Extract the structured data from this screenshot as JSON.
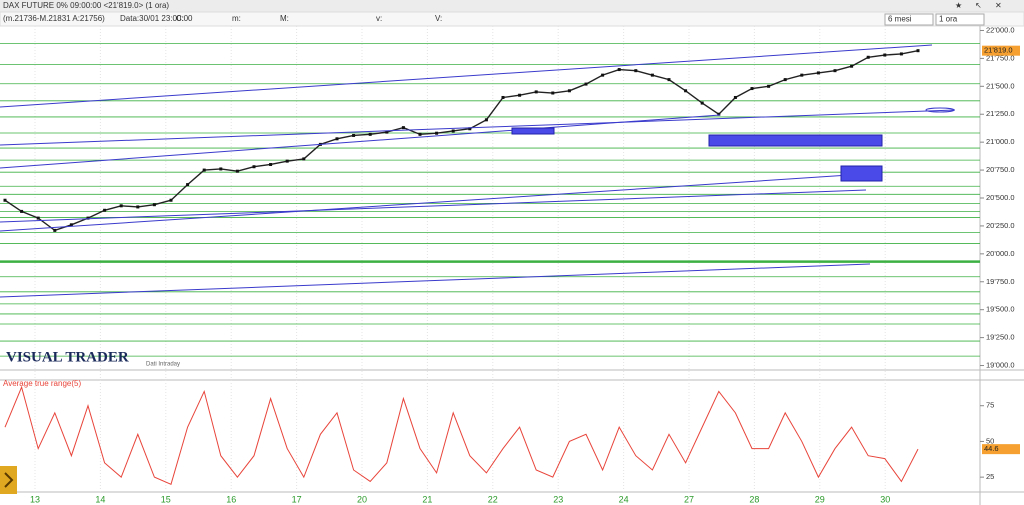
{
  "toolbar": {
    "title": "DAX FUTURE 0% 09:00:00  <21'819.0>  (1 ora)",
    "info": "(m.21736-M.21831 A:21756)",
    "date": "Data:30/01 23:00:00",
    "fields": [
      "C:",
      "m:",
      "M:",
      "v:",
      "V:"
    ],
    "period": "6 mesi",
    "interval": "1 ora"
  },
  "logo": "VISUAL TRADER",
  "logo_sub": "Dati Intraday",
  "chart_data": [
    {
      "type": "line",
      "color": "#222222",
      "day_labels": [
        "13",
        "14",
        "15",
        "16",
        "17",
        "20",
        "21",
        "22",
        "23",
        "24",
        "27",
        "28",
        "29",
        "30"
      ],
      "values": [
        20480,
        20380,
        20320,
        20210,
        20260,
        20320,
        20390,
        20430,
        20420,
        20440,
        20480,
        20620,
        20750,
        20760,
        20740,
        20780,
        20800,
        20830,
        20850,
        20980,
        21030,
        21060,
        21070,
        21090,
        21130,
        21070,
        21080,
        21100,
        21120,
        21200,
        21400,
        21420,
        21450,
        21440,
        21460,
        21520,
        21600,
        21650,
        21640,
        21600,
        21560,
        21460,
        21350,
        21250,
        21400,
        21480,
        21500,
        21560,
        21600,
        21620,
        21640,
        21680,
        21760,
        21780,
        21790,
        21819
      ],
      "last_label": "21'819.0",
      "ylim": [
        18960,
        22040
      ],
      "yticks": [
        {
          "value": 22000,
          "label": "22'000.0"
        },
        {
          "value": 21750,
          "label": "21'750.0"
        },
        {
          "value": 21500,
          "label": "21'500.0"
        },
        {
          "value": 21250,
          "label": "21'250.0"
        },
        {
          "value": 21000,
          "label": "21'000.0"
        },
        {
          "value": 20750,
          "label": "20'750.0"
        },
        {
          "value": 20500,
          "label": "20'500.0"
        },
        {
          "value": 20250,
          "label": "20'250.0"
        },
        {
          "value": 20000,
          "label": "20'000.0"
        },
        {
          "value": 19750,
          "label": "19'750.0"
        },
        {
          "value": 19500,
          "label": "19'500.0"
        },
        {
          "value": 19250,
          "label": "19'250.0"
        },
        {
          "value": 19000,
          "label": "19'000.0"
        }
      ],
      "levels": [
        21883,
        21694,
        21523,
        21370,
        21226,
        21082,
        20947,
        20839,
        20731,
        20605,
        20533,
        20452,
        20380,
        20326,
        20191,
        20092,
        19795,
        19660,
        19552,
        19462,
        19372,
        19219,
        19084
      ],
      "major_level": 19930,
      "level_color": "#3cb043"
    },
    {
      "type": "line",
      "title": "Average true range(5)",
      "color": "#e8443a",
      "values": [
        60,
        88,
        45,
        70,
        40,
        75,
        35,
        25,
        55,
        25,
        20,
        60,
        85,
        40,
        25,
        40,
        80,
        45,
        25,
        55,
        70,
        30,
        22,
        35,
        80,
        45,
        28,
        70,
        40,
        28,
        45,
        60,
        30,
        25,
        50,
        55,
        30,
        60,
        40,
        30,
        55,
        35,
        60,
        85,
        70,
        45,
        45,
        70,
        50,
        25,
        45,
        60,
        40,
        38,
        22,
        44.6
      ],
      "ylim": [
        16,
        93
      ],
      "yticks": [
        25,
        50,
        75
      ]
    }
  ]
}
